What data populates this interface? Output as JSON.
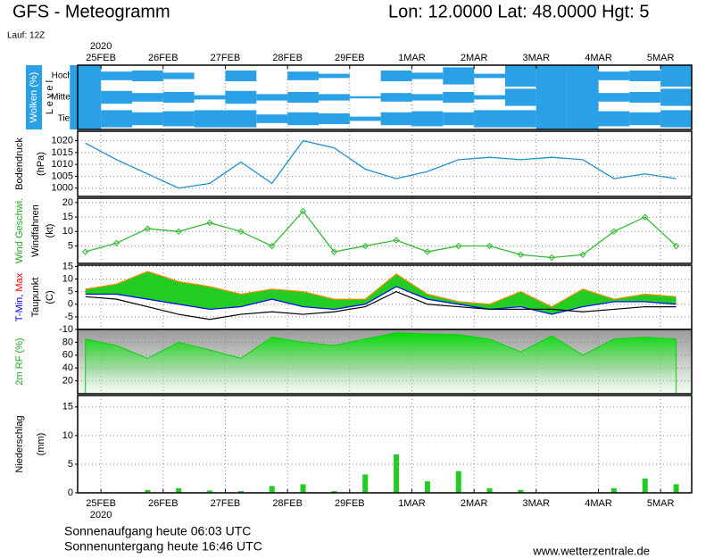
{
  "header": {
    "title": "GFS - Meteogramm",
    "location": "Lon: 12.0000 Lat: 48.0000 Hgt: 5",
    "run": "Lauf: 12Z"
  },
  "footer": {
    "sunrise": "Sonnenaufgang heute 06:03 UTC",
    "sunset": "Sonnenuntergang heute 16:46 UTC",
    "source": "www.wetterzentrale.de"
  },
  "chart_data": [
    {
      "type": "heatmap",
      "ylabel": [
        [
          {
            "text": "Wolken (%)",
            "color": "#ffffff",
            "bg": "#2aa0e6"
          }
        ],
        [
          {
            "text": "L e v e l",
            "color": "#000000"
          }
        ]
      ],
      "xlabel": "2020",
      "xlim": [
        -0.375,
        9.5
      ],
      "xticks": [
        {
          "value": 0,
          "label": "25FEB"
        },
        {
          "value": 1,
          "label": "26FEB"
        },
        {
          "value": 2,
          "label": "27FEB"
        },
        {
          "value": 3,
          "label": "28FEB"
        },
        {
          "value": 4,
          "label": "29FEB"
        },
        {
          "value": 5,
          "label": "1MAR"
        },
        {
          "value": 6,
          "label": "2MAR"
        },
        {
          "value": 7,
          "label": "3MAR"
        },
        {
          "value": 8,
          "label": "4MAR"
        },
        {
          "value": 9,
          "label": "5MAR"
        }
      ],
      "x": [
        -0.25,
        0.25,
        0.75,
        1.25,
        1.75,
        2.25,
        2.75,
        3.25,
        3.75,
        4.25,
        4.75,
        5.25,
        5.75,
        6.25,
        6.75,
        7.25,
        7.75,
        8.25,
        8.75,
        9.25
      ],
      "series": [
        {
          "name": "Hoch",
          "color": "#2aa0e6",
          "values": [
            100,
            40,
            50,
            30,
            0,
            50,
            0,
            40,
            20,
            0,
            50,
            30,
            80,
            20,
            100,
            100,
            100,
            40,
            50,
            100
          ]
        },
        {
          "name": "Mittel",
          "color": "#2aa0e6",
          "values": [
            100,
            60,
            40,
            50,
            20,
            60,
            30,
            50,
            30,
            10,
            40,
            30,
            50,
            20,
            80,
            100,
            100,
            40,
            50,
            80
          ]
        },
        {
          "name": "Tief",
          "color": "#2aa0e6",
          "values": [
            100,
            80,
            60,
            70,
            80,
            80,
            40,
            60,
            50,
            20,
            60,
            70,
            60,
            80,
            80,
            100,
            100,
            70,
            60,
            80
          ]
        }
      ]
    },
    {
      "type": "line",
      "ylabel": [
        [
          {
            "text": "Bodendruck",
            "color": "#000000"
          }
        ],
        [
          {
            "text": "(hPa)",
            "color": "#000000"
          }
        ]
      ],
      "xlim": [
        -0.375,
        9.5
      ],
      "ylim": [
        996.5,
        1024
      ],
      "yticks": [
        1000,
        1005,
        1010,
        1015,
        1020
      ],
      "grid": true,
      "x": [
        -0.25,
        0.25,
        0.75,
        1.25,
        1.75,
        2.25,
        2.75,
        3.25,
        3.75,
        4.25,
        4.75,
        5.25,
        5.75,
        6.25,
        6.75,
        7.25,
        7.75,
        8.25,
        8.75,
        9.25
      ],
      "series": [
        {
          "color": "#1e90d0",
          "values": [
            1019,
            1012,
            1006,
            1000,
            1002,
            1011,
            1002,
            1020,
            1017,
            1008,
            1004,
            1007,
            1012,
            1013,
            1012,
            1013,
            1012,
            1004,
            1006,
            1004
          ]
        }
      ]
    },
    {
      "type": "line",
      "ylabel": [
        [
          {
            "text": "Wind Geschwi.",
            "color": "#22aa22"
          }
        ],
        [
          {
            "text": "Windfahnen",
            "color": "#000000"
          }
        ],
        [
          {
            "text": "(kt)",
            "color": "#000000"
          }
        ]
      ],
      "xlim": [
        -0.375,
        9.5
      ],
      "ylim": [
        -1,
        21.5
      ],
      "yticks": [
        5,
        10,
        15,
        20
      ],
      "grid": true,
      "markers": true,
      "x": [
        -0.25,
        0.25,
        0.75,
        1.25,
        1.75,
        2.25,
        2.75,
        3.25,
        3.75,
        4.25,
        4.75,
        5.25,
        5.75,
        6.25,
        6.75,
        7.25,
        7.75,
        8.25,
        8.75,
        9.25
      ],
      "series": [
        {
          "color": "#33bb33",
          "values": [
            3,
            6,
            11,
            10,
            13,
            10,
            5,
            17,
            3,
            5,
            7,
            3,
            5,
            5,
            2,
            1,
            2,
            10,
            15,
            5
          ]
        }
      ]
    },
    {
      "type": "band",
      "ylabel": [
        [
          {
            "text": "T-Min, ",
            "color": "#0000ff"
          },
          {
            "text": "Max",
            "color": "#ff0000"
          }
        ],
        [
          {
            "text": "Taupunkt",
            "color": "#000000"
          }
        ],
        [
          {
            "text": "(C)",
            "color": "#000000"
          }
        ]
      ],
      "xlim": [
        -0.375,
        9.5
      ],
      "ylim": [
        -10,
        15.5
      ],
      "yticks": [
        15,
        10,
        5,
        0,
        -5,
        -10
      ],
      "grid": true,
      "fill": "#22cc22",
      "x": [
        -0.25,
        0.25,
        0.75,
        1.25,
        1.75,
        2.25,
        2.75,
        3.25,
        3.75,
        4.25,
        4.75,
        5.25,
        5.75,
        6.25,
        6.75,
        7.25,
        7.75,
        8.25,
        8.75,
        9.25
      ],
      "series": [
        {
          "color": "#ff8c00",
          "values": [
            6,
            8,
            13,
            9,
            7,
            4,
            6,
            5,
            2,
            2,
            12,
            4,
            1,
            0,
            5,
            -1,
            6,
            2,
            4,
            3
          ]
        },
        {
          "color": "#0000ff",
          "values": [
            4,
            4,
            2,
            0,
            -2,
            -1,
            2,
            -1,
            -2,
            0,
            7,
            2,
            0,
            -2,
            -1,
            -4,
            -1,
            1,
            1,
            0
          ]
        },
        {
          "color": "#000000",
          "values": [
            3,
            2,
            -1,
            -4,
            -6,
            -4,
            -3,
            -4,
            -3,
            -1,
            5,
            0,
            -1,
            -2,
            -2,
            -2,
            -3,
            -2,
            -1,
            -1
          ]
        }
      ]
    },
    {
      "type": "area",
      "ylabel": [
        [
          {
            "text": "2m RF (%)",
            "color": "#22aa22"
          }
        ]
      ],
      "xlim": [
        -0.375,
        9.5
      ],
      "ylim": [
        0,
        100
      ],
      "yticks": [
        20,
        40,
        60,
        80
      ],
      "grid": true,
      "x": [
        -0.25,
        0.25,
        0.75,
        1.25,
        1.75,
        2.25,
        2.75,
        3.25,
        3.75,
        4.25,
        4.75,
        5.25,
        5.75,
        6.25,
        6.75,
        7.25,
        7.75,
        8.25,
        8.75,
        9.25
      ],
      "series": [
        {
          "color": "#11cc11",
          "values": [
            85,
            75,
            55,
            80,
            68,
            55,
            88,
            80,
            75,
            85,
            95,
            93,
            92,
            85,
            65,
            90,
            60,
            85,
            88,
            85
          ]
        }
      ]
    },
    {
      "type": "bar",
      "ylabel": [
        [
          {
            "text": "Niederschlag",
            "color": "#000000"
          }
        ],
        [
          {
            "text": "(mm)",
            "color": "#000000"
          }
        ]
      ],
      "xlabel": "2020",
      "xlim": [
        -0.375,
        9.5
      ],
      "ylim": [
        0,
        17
      ],
      "yticks": [
        0,
        5,
        10,
        15
      ],
      "grid": true,
      "xticks": [
        {
          "value": 0,
          "label": "25FEB"
        },
        {
          "value": 1,
          "label": "26FEB"
        },
        {
          "value": 2,
          "label": "27FEB"
        },
        {
          "value": 3,
          "label": "28FEB"
        },
        {
          "value": 4,
          "label": "29FEB"
        },
        {
          "value": 5,
          "label": "1MAR"
        },
        {
          "value": 6,
          "label": "2MAR"
        },
        {
          "value": 7,
          "label": "3MAR"
        },
        {
          "value": 8,
          "label": "4MAR"
        },
        {
          "value": 9,
          "label": "5MAR"
        }
      ],
      "x": [
        -0.25,
        0.25,
        0.75,
        1.25,
        1.75,
        2.25,
        2.75,
        3.25,
        3.75,
        4.25,
        4.75,
        5.25,
        5.75,
        6.25,
        6.75,
        7.25,
        7.75,
        8.25,
        8.75,
        9.25
      ],
      "series": [
        {
          "color": "#22cc22",
          "values": [
            0,
            0,
            0.5,
            0.8,
            0.4,
            0.3,
            1.2,
            1.5,
            0.3,
            3.2,
            6.7,
            2,
            3.8,
            0.8,
            0.5,
            0,
            0,
            0.8,
            2.5,
            1.5
          ]
        }
      ]
    }
  ]
}
